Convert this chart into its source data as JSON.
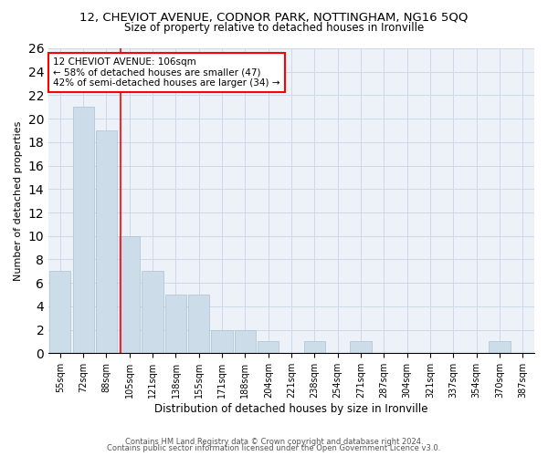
{
  "title": "12, CHEVIOT AVENUE, CODNOR PARK, NOTTINGHAM, NG16 5QQ",
  "subtitle": "Size of property relative to detached houses in Ironville",
  "xlabel": "Distribution of detached houses by size in Ironville",
  "ylabel": "Number of detached properties",
  "categories": [
    "55sqm",
    "72sqm",
    "88sqm",
    "105sqm",
    "121sqm",
    "138sqm",
    "155sqm",
    "171sqm",
    "188sqm",
    "204sqm",
    "221sqm",
    "238sqm",
    "254sqm",
    "271sqm",
    "287sqm",
    "304sqm",
    "321sqm",
    "337sqm",
    "354sqm",
    "370sqm",
    "387sqm"
  ],
  "values": [
    7,
    21,
    19,
    10,
    7,
    5,
    5,
    2,
    2,
    1,
    0,
    1,
    0,
    1,
    0,
    0,
    0,
    0,
    0,
    1,
    0
  ],
  "bar_color": "#ccdce8",
  "bar_edge_color": "#aac0d4",
  "annotation_text": "12 CHEVIOT AVENUE: 106sqm\n← 58% of detached houses are smaller (47)\n42% of semi-detached houses are larger (34) →",
  "annotation_box_color": "white",
  "annotation_box_edge_color": "red",
  "vline_color": "red",
  "ylim": [
    0,
    26
  ],
  "yticks": [
    0,
    2,
    4,
    6,
    8,
    10,
    12,
    14,
    16,
    18,
    20,
    22,
    24,
    26
  ],
  "footer1": "Contains HM Land Registry data © Crown copyright and database right 2024.",
  "footer2": "Contains public sector information licensed under the Open Government Licence v3.0.",
  "bg_color": "#edf2f8",
  "grid_color": "#ccd8e8"
}
